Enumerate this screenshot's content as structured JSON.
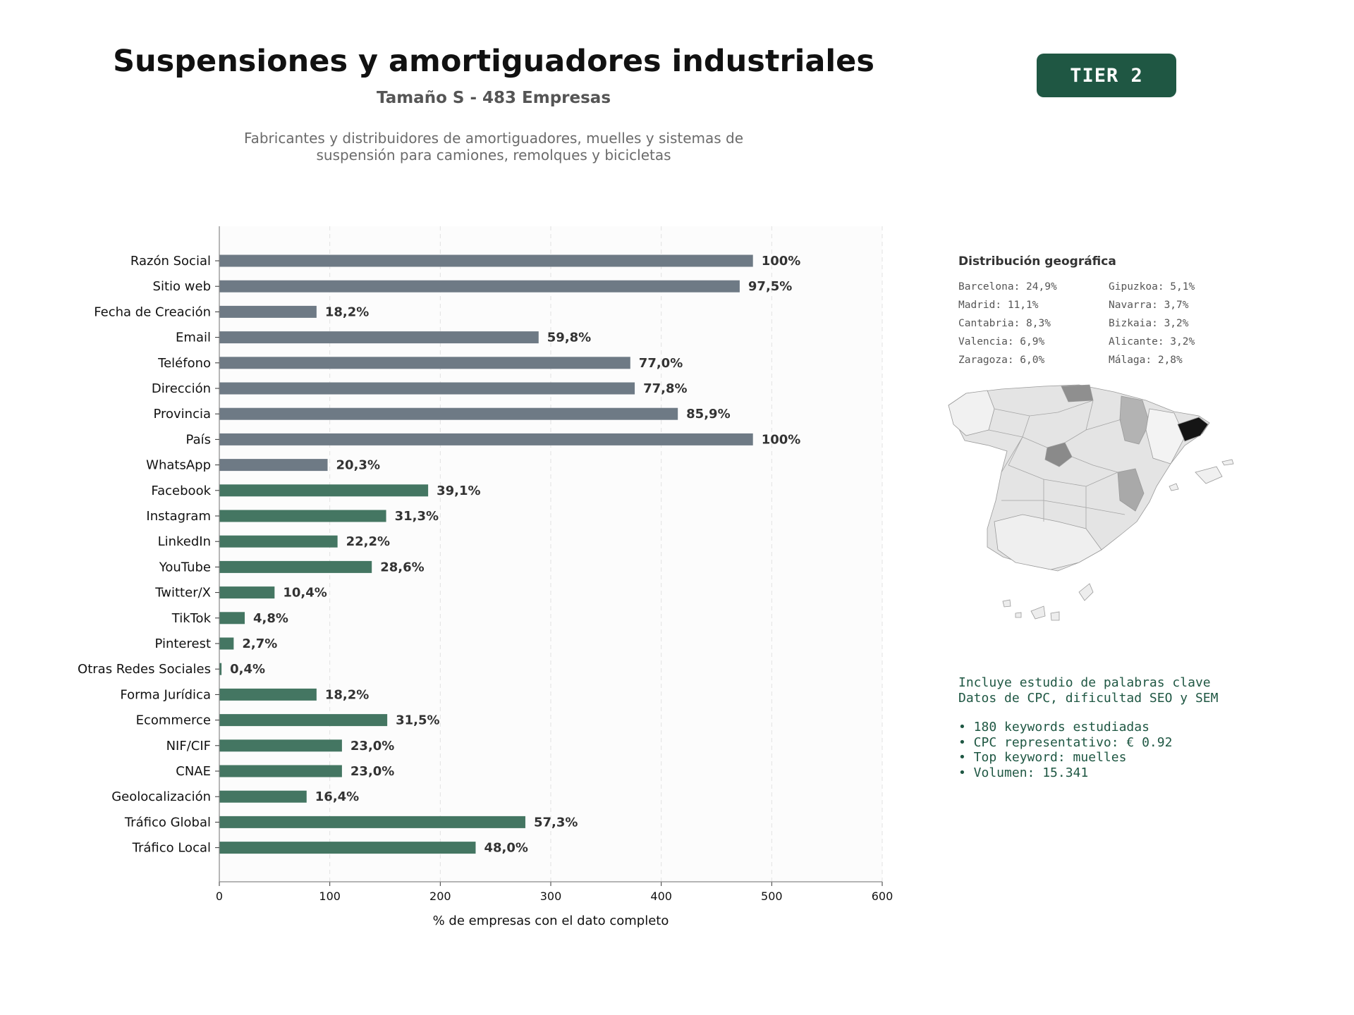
{
  "header": {
    "title": "Suspensiones y amortiguadores industriales",
    "subtitle": "Tamaño S - 483 Empresas",
    "description_line1": "Fabricantes y distribuidores de amortiguadores, muelles y sistemas de",
    "description_line2": "suspensión para camiones, remolques y bicicletas",
    "tier_badge": "TIER 2",
    "tier_color": "#1f5743"
  },
  "chart_data": {
    "type": "bar",
    "orientation": "horizontal",
    "xlabel": "% de empresas con el dato completo",
    "ylabel": "",
    "xlim": [
      0,
      600
    ],
    "xticks": [
      0,
      100,
      200,
      300,
      400,
      500,
      600
    ],
    "grid": "vertical dashed",
    "categories": [
      "Razón Social",
      "Sitio web",
      "Fecha de Creación",
      "Email",
      "Teléfono",
      "Dirección",
      "Provincia",
      "País",
      "WhatsApp",
      "Facebook",
      "Instagram",
      "LinkedIn",
      "YouTube",
      "Twitter/X",
      "TikTok",
      "Pinterest",
      "Otras Redes Sociales",
      "Forma Jurídica",
      "Ecommerce",
      "NIF/CIF",
      "CNAE",
      "Geolocalización",
      "Tráfico Global",
      "Tráfico Local"
    ],
    "values": [
      483,
      471,
      88,
      289,
      372,
      376,
      415,
      483,
      98,
      189,
      151,
      107,
      138,
      50,
      23,
      13,
      2,
      88,
      152,
      111,
      111,
      79,
      277,
      232
    ],
    "labels": [
      "100%",
      "97,5%",
      "18,2%",
      "59,8%",
      "77,0%",
      "77,8%",
      "85,9%",
      "100%",
      "20,3%",
      "39,1%",
      "31,3%",
      "22,2%",
      "28,6%",
      "10,4%",
      "4,8%",
      "2,7%",
      "0,4%",
      "18,2%",
      "31,5%",
      "23,0%",
      "23,0%",
      "16,4%",
      "57,3%",
      "48,0%"
    ],
    "groups": [
      "contact",
      "contact",
      "contact",
      "contact",
      "contact",
      "contact",
      "contact",
      "contact",
      "contact",
      "social",
      "social",
      "social",
      "social",
      "social",
      "social",
      "social",
      "social",
      "social",
      "social",
      "social",
      "social",
      "social",
      "social",
      "social"
    ],
    "colors": {
      "contact": "#6e7a85",
      "social": "#447662"
    }
  },
  "geo": {
    "title": "Distribución geográfica",
    "left": [
      "Barcelona: 24,9%",
      "Madrid: 11,1%",
      "Cantabria: 8,3%",
      "Valencia: 6,9%",
      "Zaragoza: 6,0%"
    ],
    "right": [
      "Gipuzkoa: 5,1%",
      "Navarra: 3,7%",
      "Bizkaia: 3,2%",
      "Alicante: 3,2%",
      "Málaga: 2,8%"
    ]
  },
  "keywords": {
    "line1": "Incluye estudio de palabras clave",
    "line2": "Datos de CPC, dificultad SEO y SEM",
    "bullets": [
      "• 180 keywords estudiadas",
      "• CPC representativo: € 0.92",
      "• Top keyword: muelles",
      "• Volumen: 15.341"
    ],
    "color": "#1f5743"
  }
}
